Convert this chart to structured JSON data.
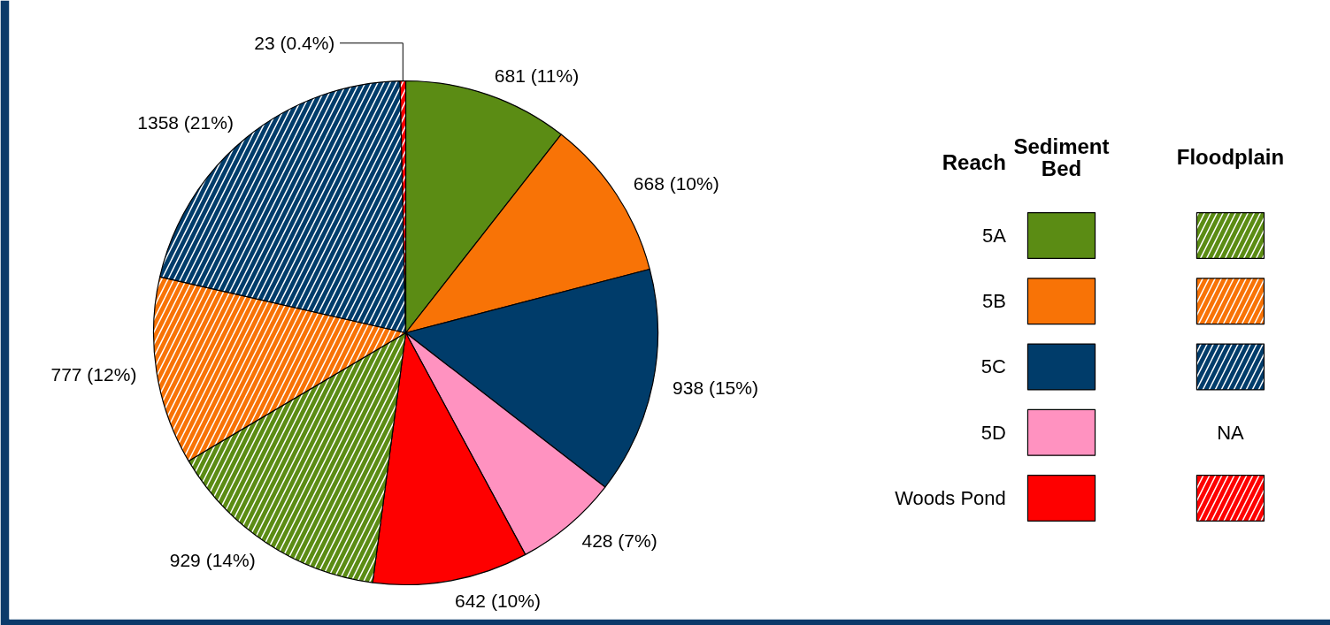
{
  "chart_data": {
    "type": "pie",
    "legend_title": "Reach",
    "legend": "right",
    "categories": [
      "5A",
      "5B",
      "5C",
      "5D",
      "Woods Pond",
      null,
      null,
      null,
      null
    ],
    "values": [
      681,
      668,
      938,
      428,
      642,
      929,
      777,
      1358,
      23
    ],
    "colors": [
      "#5b8c14",
      "#f87306",
      "#003c6a",
      "#ff92c0",
      "#fe0000",
      "#5b8c14",
      "#f87306",
      "#003c6a",
      "#fe0000"
    ],
    "value_labels": [
      "681 (11%)",
      "668 (10%)",
      "938 (15%)",
      "428 (7%)",
      "642 (10%)",
      "929 (14%)",
      "777 (12%)",
      "1358 (21%)",
      "23 (0.4%)"
    ],
    "annotations": [
      "Sediment Bed",
      "Floodplain",
      "NA"
    ]
  }
}
